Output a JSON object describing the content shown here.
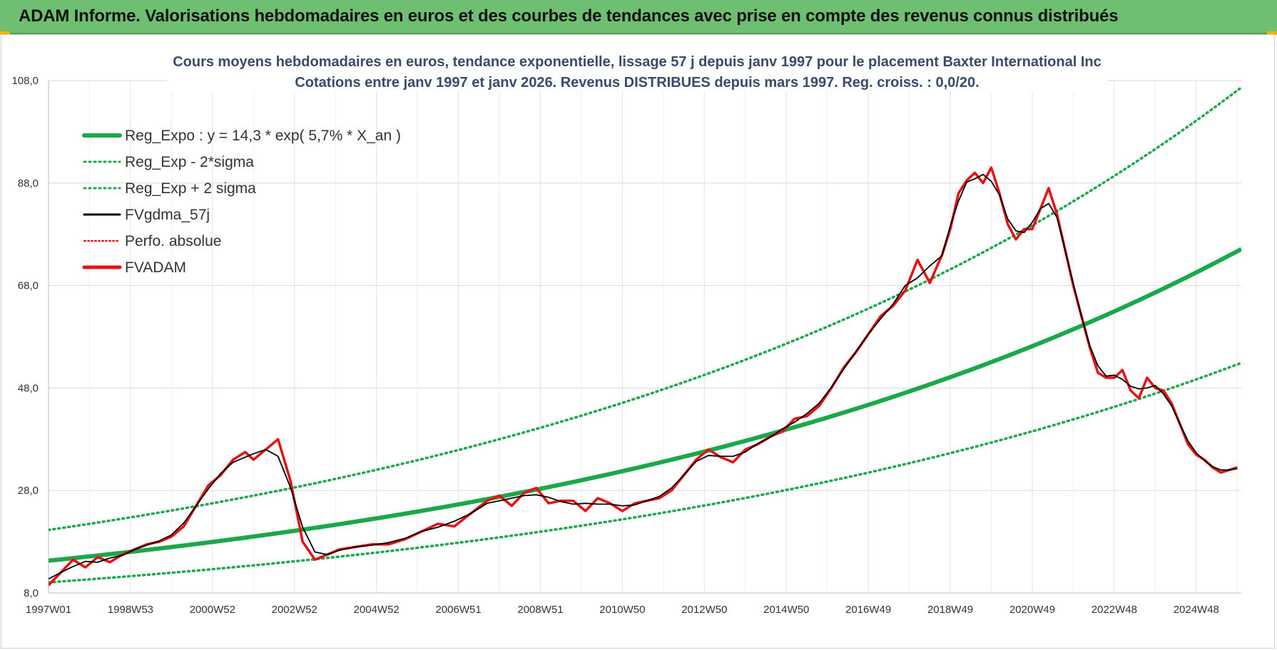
{
  "banner": {
    "title": "ADAM Informe. Valorisations hebdomadaires en euros et des courbes de tendances avec prise en compte des revenus connus distribués",
    "background": "#6fbf73"
  },
  "chart_data": {
    "type": "line",
    "title_line1": "Cours moyens hebdomadaires en euros, tendance exponentielle, lissage 57 j depuis janv 1997 pour le placement Baxter International Inc",
    "title_line2": "Cotations entre janv 1997 et janv 2026. Revenus DISTRIBUES depuis mars 1997.  Reg. croiss. : 0,0/20.",
    "xlabel": "",
    "ylabel": "",
    "ylim": [
      8.0,
      108.0
    ],
    "xlim": [
      1997.0,
      2026.1
    ],
    "y_ticks": [
      "8,0",
      "28,0",
      "48,0",
      "68,0",
      "88,0",
      "108,0"
    ],
    "x_ticks": [
      "1997W01",
      "1998W53",
      "2000W52",
      "2002W52",
      "2004W52",
      "2006W51",
      "2008W51",
      "2010W50",
      "2012W50",
      "2014W50",
      "2016W49",
      "2018W49",
      "2020W49",
      "2022W48",
      "2024W48"
    ],
    "x_tick_years": [
      1997.0,
      1999.0,
      2001.0,
      2003.0,
      2005.0,
      2007.0,
      2009.0,
      2011.0,
      2013.0,
      2015.0,
      2017.0,
      2019.0,
      2021.0,
      2023.0,
      2025.0
    ],
    "grid": true,
    "legend_position": "top-left",
    "regression": {
      "a": 14.3,
      "rate": 0.057,
      "sigma_factor": 1.42,
      "colors": {
        "trend": "#1aa84a",
        "band": "#1aa84a"
      }
    },
    "series": [
      {
        "name": "Reg_Expo : y = 14,3 * exp( 5,7% *  X_an )",
        "color": "#1aa84a",
        "style": "solid-thick"
      },
      {
        "name": "Reg_Exp - 2*sigma",
        "color": "#1aa84a",
        "style": "dotted"
      },
      {
        "name": "Reg_Exp + 2 sigma",
        "color": "#1aa84a",
        "style": "dotted"
      },
      {
        "name": "FVgdma_57j",
        "color": "#000000",
        "style": "solid-thin"
      },
      {
        "name": "Perfo. absolue",
        "color": "#e00000",
        "style": "dotted-thin"
      },
      {
        "name": "FVADAM",
        "color": "#e81010",
        "style": "solid-thick",
        "x": [
          1997.0,
          1997.3,
          1997.6,
          1997.9,
          1998.2,
          1998.5,
          1998.8,
          1999.1,
          1999.4,
          1999.7,
          2000.0,
          2000.3,
          2000.6,
          2000.9,
          2001.2,
          2001.5,
          2001.8,
          2002.0,
          2002.3,
          2002.6,
          2002.9,
          2003.2,
          2003.5,
          2003.8,
          2004.1,
          2004.5,
          2004.9,
          2005.3,
          2005.7,
          2006.1,
          2006.5,
          2006.9,
          2007.3,
          2007.7,
          2008.0,
          2008.3,
          2008.6,
          2008.9,
          2009.2,
          2009.5,
          2009.8,
          2010.1,
          2010.4,
          2010.7,
          2011.0,
          2011.3,
          2011.6,
          2011.9,
          2012.2,
          2012.5,
          2012.8,
          2013.1,
          2013.4,
          2013.7,
          2014.0,
          2014.3,
          2014.6,
          2014.9,
          2015.2,
          2015.5,
          2015.8,
          2016.1,
          2016.4,
          2016.7,
          2017.0,
          2017.3,
          2017.6,
          2017.9,
          2018.2,
          2018.5,
          2018.8,
          2019.0,
          2019.2,
          2019.4,
          2019.6,
          2019.8,
          2020.0,
          2020.2,
          2020.4,
          2020.6,
          2020.8,
          2021.0,
          2021.2,
          2021.4,
          2021.6,
          2021.8,
          2022.0,
          2022.2,
          2022.4,
          2022.6,
          2022.8,
          2023.0,
          2023.2,
          2023.4,
          2023.6,
          2023.8,
          2024.0,
          2024.2,
          2024.4,
          2024.6,
          2024.8,
          2025.0,
          2025.2,
          2025.4,
          2025.6,
          2025.8,
          2026.0
        ],
        "values": [
          9.5,
          12.0,
          14.5,
          13.0,
          15.0,
          14.0,
          15.5,
          16.5,
          17.5,
          18.0,
          19.0,
          21.0,
          25.0,
          29.0,
          31.0,
          34.0,
          35.5,
          34.0,
          36.0,
          38.0,
          30.0,
          18.0,
          14.5,
          15.5,
          16.5,
          17.0,
          17.5,
          17.5,
          18.5,
          20.0,
          21.5,
          21.0,
          23.5,
          26.0,
          27.0,
          25.0,
          27.5,
          28.5,
          25.5,
          26.0,
          26.0,
          24.0,
          26.5,
          25.5,
          24.0,
          25.5,
          26.0,
          26.5,
          28.0,
          31.0,
          34.0,
          36.0,
          34.5,
          33.5,
          36.0,
          37.0,
          38.5,
          39.5,
          42.0,
          42.5,
          44.5,
          48.0,
          52.0,
          55.0,
          58.5,
          62.0,
          64.0,
          67.0,
          73.0,
          68.5,
          74.0,
          79.0,
          86.0,
          88.5,
          90.0,
          88.0,
          91.0,
          86.0,
          80.0,
          77.0,
          79.0,
          79.0,
          83.0,
          87.0,
          82.0,
          75.0,
          68.0,
          62.0,
          56.0,
          51.0,
          50.0,
          50.0,
          51.5,
          47.5,
          46.0,
          50.0,
          48.0,
          47.5,
          45.0,
          41.0,
          37.0,
          35.0,
          34.0,
          32.5,
          31.5,
          32.0,
          32.5
        ]
      }
    ]
  }
}
